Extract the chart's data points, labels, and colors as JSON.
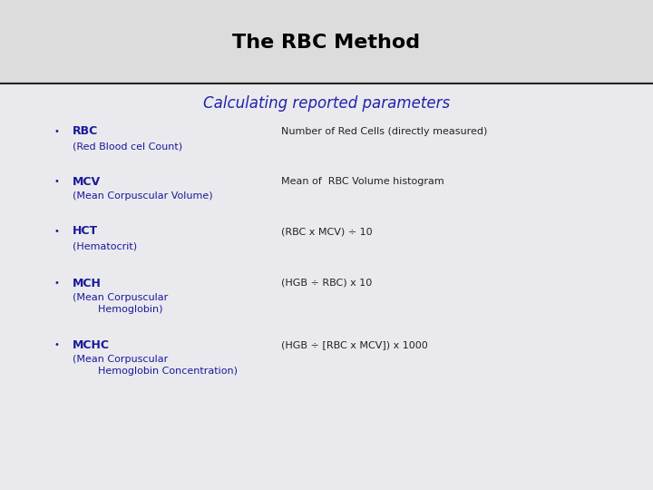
{
  "title": "The RBC Method",
  "subtitle": "Calculating reported parameters",
  "title_color": "#000000",
  "subtitle_color": "#2222aa",
  "bg_color": "#e0e0e0",
  "header_bg": "#dcdcdc",
  "content_bg": "#e8e8ec",
  "bullet_label_color": "#1a1a99",
  "bullet_text_color": "#222222",
  "line_color": "#222222",
  "entries": [
    {
      "label": "RBC",
      "sublabel_lines": [
        "(Red Blood cel Count)"
      ],
      "description": "Number of Red Cells (directly measured)"
    },
    {
      "label": "MCV",
      "sublabel_lines": [
        "(Mean Corpuscular Volume)"
      ],
      "description": "Mean of  RBC Volume histogram"
    },
    {
      "label": "HCT",
      "sublabel_lines": [
        "(Hematocrit)"
      ],
      "description": "(RBC x MCV) ÷ 10"
    },
    {
      "label": "MCH",
      "sublabel_lines": [
        "(Mean Corpuscular",
        "        Hemoglobin)"
      ],
      "description": "(HGB ÷ RBC) x 10"
    },
    {
      "label": "MCHC",
      "sublabel_lines": [
        "(Mean Corpuscular",
        "        Hemoglobin Concentration)"
      ],
      "description": "(HGB ÷ [RBC x MCV]) x 1000"
    }
  ],
  "title_fontsize": 16,
  "subtitle_fontsize": 12,
  "label_fontsize": 9,
  "sublabel_fontsize": 8,
  "desc_fontsize": 8,
  "bullet_fontsize": 7,
  "figwidth": 7.2,
  "figheight": 5.4,
  "dpi": 100
}
